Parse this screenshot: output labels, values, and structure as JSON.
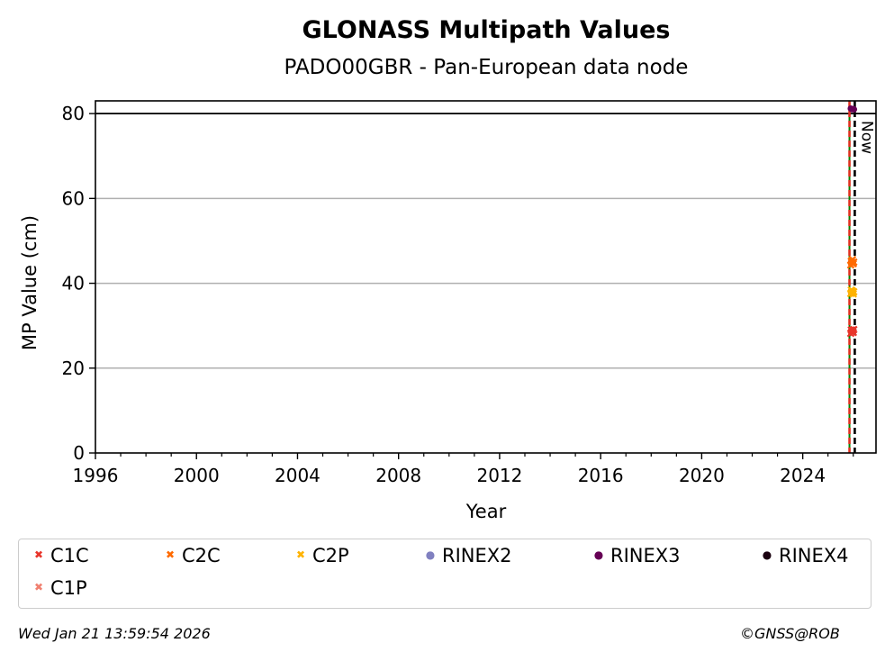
{
  "chart_data": {
    "type": "scatter",
    "title": "GLONASS Multipath Values",
    "subtitle": "PADO00GBR - Pan-European data node",
    "xlabel": "Year",
    "ylabel": "MP Value (cm)",
    "xlim": [
      1996,
      2026.9
    ],
    "ylim": [
      0,
      83
    ],
    "xticks": [
      1996,
      2000,
      2004,
      2008,
      2012,
      2016,
      2020,
      2024
    ],
    "yticks": [
      0,
      20,
      40,
      60,
      80
    ],
    "grid": "horizontal",
    "legend_position": "bottom",
    "hlines": [
      {
        "y": 80,
        "color": "#000000"
      }
    ],
    "vlines": [
      {
        "x": 2025.85,
        "color": "#008000",
        "style": "solid"
      },
      {
        "x": 2025.85,
        "color": "#e03020",
        "style": "dashed"
      },
      {
        "x": 2026.06,
        "color": "#000000",
        "style": "dashed",
        "label": "Now"
      }
    ],
    "series": [
      {
        "name": "C1C",
        "marker": "x",
        "color": "#e8352b",
        "points": [
          [
            2025.9,
            28.2
          ],
          [
            2025.92,
            29.0
          ],
          [
            2025.95,
            28.6
          ],
          [
            2025.97,
            28.9
          ],
          [
            2026.0,
            28.4
          ],
          [
            2026.02,
            29.1
          ]
        ]
      },
      {
        "name": "C2C",
        "marker": "x",
        "color": "#ff6a00",
        "points": [
          [
            2025.9,
            44.3
          ],
          [
            2025.92,
            45.2
          ],
          [
            2025.95,
            44.8
          ],
          [
            2025.97,
            45.6
          ],
          [
            2026.0,
            44.6
          ],
          [
            2026.02,
            45.0
          ]
        ]
      },
      {
        "name": "C2P",
        "marker": "x",
        "color": "#ffb300",
        "points": [
          [
            2025.9,
            37.6
          ],
          [
            2025.92,
            38.4
          ],
          [
            2025.95,
            37.9
          ],
          [
            2025.97,
            38.2
          ],
          [
            2026.0,
            37.5
          ],
          [
            2026.02,
            38.0
          ]
        ]
      },
      {
        "name": "RINEX2",
        "marker": "o",
        "color": "#8080c0",
        "points": []
      },
      {
        "name": "RINEX3",
        "marker": "o",
        "color": "#660055",
        "points": [
          [
            2025.9,
            81.2
          ],
          [
            2025.95,
            81.0
          ],
          [
            2026.0,
            81.1
          ],
          [
            2026.03,
            81.0
          ]
        ]
      },
      {
        "name": "RINEX4",
        "marker": "o",
        "color": "#1a0010",
        "points": []
      },
      {
        "name": "C1P",
        "marker": "x",
        "color": "#f08070",
        "points": []
      }
    ]
  },
  "footer": {
    "timestamp": "Wed Jan 21 13:59:54 2026",
    "credit": "©GNSS@ROB"
  },
  "marker_glyphs": {
    "x": "✖",
    "o": "●"
  }
}
